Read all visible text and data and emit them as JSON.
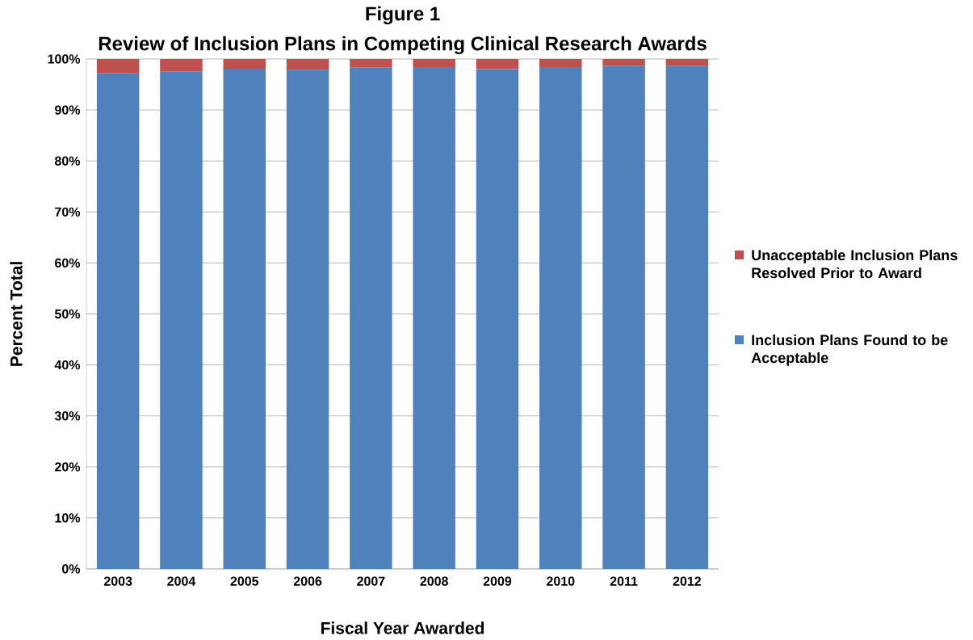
{
  "chart_data": {
    "type": "bar",
    "stacked": true,
    "title": "Figure 1",
    "subtitle": "Review of Inclusion Plans in Competing Clinical Research Awards",
    "xlabel": "Fiscal Year Awarded",
    "ylabel": "Percent Total",
    "categories": [
      "2003",
      "2004",
      "2005",
      "2006",
      "2007",
      "2008",
      "2009",
      "2010",
      "2011",
      "2012"
    ],
    "series": [
      {
        "name": "Inclusion Plans Found to be Acceptable",
        "color": "#4f81bd",
        "values": [
          97.2,
          97.5,
          98.1,
          97.9,
          98.3,
          98.4,
          98.0,
          98.4,
          98.6,
          98.6
        ]
      },
      {
        "name": "Unacceptable Inclusion Plans Resolved Prior to Award",
        "color": "#c0504d",
        "values": [
          2.8,
          2.5,
          1.9,
          2.1,
          1.7,
          1.6,
          2.0,
          1.6,
          1.4,
          1.4
        ]
      }
    ],
    "ylim": [
      0,
      100
    ],
    "yticks": [
      {
        "value": 0,
        "label": "0%"
      },
      {
        "value": 10,
        "label": "10%"
      },
      {
        "value": 20,
        "label": "20%"
      },
      {
        "value": 30,
        "label": "30%"
      },
      {
        "value": 40,
        "label": "40%"
      },
      {
        "value": 50,
        "label": "50%"
      },
      {
        "value": 60,
        "label": "60%"
      },
      {
        "value": 70,
        "label": "70%"
      },
      {
        "value": 80,
        "label": "80%"
      },
      {
        "value": 90,
        "label": "90%"
      },
      {
        "value": 100,
        "label": "100%"
      }
    ],
    "grid": "y",
    "legend": "right"
  }
}
